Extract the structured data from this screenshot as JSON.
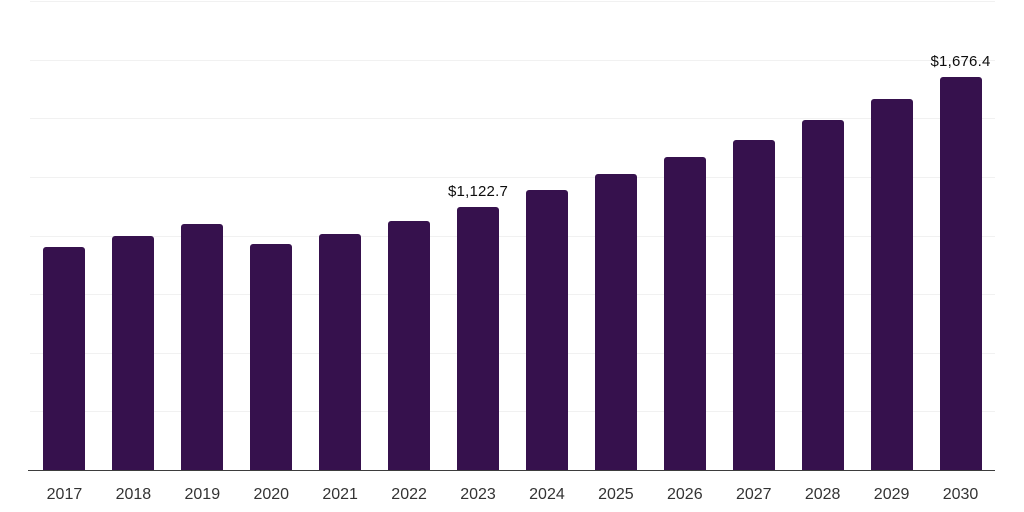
{
  "chart_data": {
    "type": "bar",
    "title": "",
    "xlabel": "",
    "ylabel": "",
    "categories": [
      "2017",
      "2018",
      "2019",
      "2020",
      "2021",
      "2022",
      "2023",
      "2024",
      "2025",
      "2026",
      "2027",
      "2028",
      "2029",
      "2030"
    ],
    "values": [
      950,
      998,
      1048,
      964,
      1006,
      1064,
      1122.7,
      1193,
      1262,
      1333,
      1407,
      1492,
      1583,
      1676.4
    ],
    "value_labels": [
      "",
      "",
      "",
      "",
      "",
      "",
      "$1,122.7",
      "",
      "",
      "",
      "",
      "",
      "",
      "$1,676.4"
    ],
    "ylim": [
      0,
      2000
    ],
    "gridline_step": 250,
    "grid": "horizontal-only",
    "legend": "none",
    "y_tick_labels_shown": false
  },
  "style": {
    "bar_color": "#36114d",
    "gridline_color": "#f1f1f1",
    "axis_line_color": "#3d3d3d",
    "tick_label_color": "#333333",
    "value_label_color": "#0d0d0d",
    "background_color": "#ffffff"
  }
}
